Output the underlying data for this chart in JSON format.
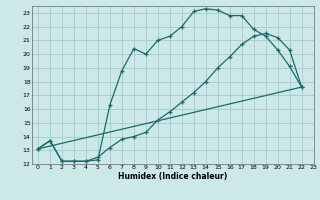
{
  "xlabel": "Humidex (Indice chaleur)",
  "background_color": "#cce8e8",
  "grid_color": "#aacfcf",
  "line_color": "#1a6b6b",
  "xlim": [
    -0.5,
    23
  ],
  "ylim": [
    12,
    23.5
  ],
  "xticks": [
    0,
    1,
    2,
    3,
    4,
    5,
    6,
    7,
    8,
    9,
    10,
    11,
    12,
    13,
    14,
    15,
    16,
    17,
    18,
    19,
    20,
    21,
    22,
    23
  ],
  "yticks": [
    12,
    13,
    14,
    15,
    16,
    17,
    18,
    19,
    20,
    21,
    22,
    23
  ],
  "line1_x": [
    0,
    1,
    2,
    3,
    4,
    5,
    6,
    7,
    8,
    9,
    10,
    11,
    12,
    13,
    14,
    15,
    16,
    17,
    18,
    19,
    20,
    21,
    22
  ],
  "line1_y": [
    13.1,
    13.7,
    12.2,
    12.2,
    12.2,
    12.3,
    16.3,
    18.8,
    20.4,
    20.0,
    21.0,
    21.3,
    22.0,
    23.1,
    23.3,
    23.2,
    22.8,
    22.8,
    21.8,
    21.3,
    20.3,
    19.1,
    17.6
  ],
  "line2_x": [
    0,
    1,
    2,
    3,
    4,
    5,
    6,
    7,
    8,
    9,
    10,
    11,
    12,
    13,
    14,
    15,
    16,
    17,
    18,
    19,
    20,
    21,
    22
  ],
  "line2_y": [
    13.1,
    13.7,
    12.2,
    12.2,
    12.2,
    12.5,
    13.2,
    13.8,
    14.0,
    14.3,
    15.2,
    15.8,
    16.5,
    17.2,
    18.0,
    19.0,
    19.8,
    20.7,
    21.3,
    21.5,
    21.2,
    20.3,
    17.6
  ],
  "line3_x": [
    0,
    22
  ],
  "line3_y": [
    13.1,
    17.6
  ]
}
